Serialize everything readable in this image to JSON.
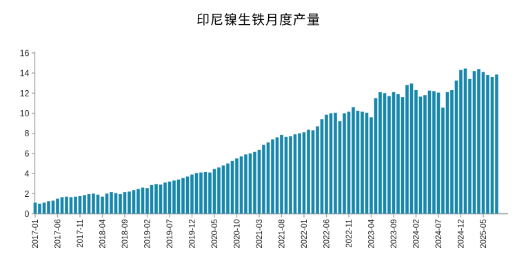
{
  "chart_data": {
    "type": "bar",
    "title": "印尼镍生铁月度产量",
    "legend": "none",
    "grid": false,
    "ylim": [
      0,
      16
    ],
    "y_tick_labels": [
      "0",
      "2",
      "4",
      "6",
      "8",
      "10",
      "12",
      "14",
      "16"
    ],
    "x_tick_labels": [
      "2017-01",
      "2017-06",
      "2017-11",
      "2018-04",
      "2018-09",
      "2019-02",
      "2019-07",
      "2019-12",
      "2020-05",
      "2020-10",
      "2021-03",
      "2021-08",
      "2022-01",
      "2022-06",
      "2022-11",
      "2023-04",
      "2023-09",
      "2024-02",
      "2024-07",
      "2024-12",
      "2025-05"
    ],
    "x": [
      "2017-01",
      "2017-02",
      "2017-03",
      "2017-04",
      "2017-05",
      "2017-06",
      "2017-07",
      "2017-08",
      "2017-09",
      "2017-10",
      "2017-11",
      "2017-12",
      "2018-01",
      "2018-02",
      "2018-03",
      "2018-04",
      "2018-05",
      "2018-06",
      "2018-07",
      "2018-08",
      "2018-09",
      "2018-10",
      "2018-11",
      "2018-12",
      "2019-01",
      "2019-02",
      "2019-03",
      "2019-04",
      "2019-05",
      "2019-06",
      "2019-07",
      "2019-08",
      "2019-09",
      "2019-10",
      "2019-11",
      "2019-12",
      "2020-01",
      "2020-02",
      "2020-03",
      "2020-04",
      "2020-05",
      "2020-06",
      "2020-07",
      "2020-08",
      "2020-09",
      "2020-10",
      "2020-11",
      "2020-12",
      "2021-01",
      "2021-02",
      "2021-03",
      "2021-04",
      "2021-05",
      "2021-06",
      "2021-07",
      "2021-08",
      "2021-09",
      "2021-10",
      "2021-11",
      "2021-12",
      "2022-01",
      "2022-02",
      "2022-03",
      "2022-04",
      "2022-05",
      "2022-06",
      "2022-07",
      "2022-08",
      "2022-09",
      "2022-10",
      "2022-11",
      "2022-12",
      "2023-01",
      "2023-02",
      "2023-03",
      "2023-04",
      "2023-05",
      "2023-06",
      "2023-07",
      "2023-08",
      "2023-09",
      "2023-10",
      "2023-11",
      "2023-12",
      "2024-01",
      "2024-02",
      "2024-03",
      "2024-04",
      "2024-05",
      "2024-06",
      "2024-07",
      "2024-08",
      "2024-09",
      "2024-10",
      "2024-11",
      "2024-12",
      "2025-01",
      "2025-02",
      "2025-03",
      "2025-04",
      "2025-05",
      "2025-06",
      "2025-07",
      "2025-08"
    ],
    "values": [
      1.1,
      1.0,
      1.1,
      1.25,
      1.3,
      1.5,
      1.65,
      1.7,
      1.65,
      1.7,
      1.75,
      1.85,
      1.95,
      2.0,
      1.9,
      1.7,
      2.0,
      2.15,
      2.05,
      1.95,
      2.15,
      2.2,
      2.35,
      2.45,
      2.6,
      2.55,
      2.85,
      2.95,
      2.9,
      3.1,
      3.2,
      3.3,
      3.4,
      3.55,
      3.7,
      3.9,
      4.05,
      4.1,
      4.15,
      4.1,
      4.45,
      4.6,
      4.8,
      5.0,
      5.25,
      5.5,
      5.7,
      5.9,
      6.0,
      6.15,
      6.35,
      6.85,
      7.1,
      7.4,
      7.6,
      7.85,
      7.65,
      7.7,
      7.9,
      8.0,
      8.1,
      8.35,
      8.3,
      8.7,
      9.4,
      9.85,
      10.0,
      10.05,
      9.2,
      10.0,
      10.15,
      10.6,
      10.25,
      10.15,
      10.05,
      9.6,
      11.5,
      12.1,
      12.0,
      11.7,
      12.1,
      11.9,
      11.6,
      12.8,
      12.95,
      12.3,
      11.65,
      11.8,
      12.25,
      12.2,
      12.05,
      10.55,
      12.1,
      12.3,
      13.25,
      14.3,
      14.45,
      13.4,
      14.2,
      14.4,
      14.1,
      13.8,
      13.6,
      13.85
    ],
    "bar_color": "#1787AB",
    "axis_color": "#A6A6A6",
    "label_color": "#262626",
    "title_color": "#000000"
  }
}
